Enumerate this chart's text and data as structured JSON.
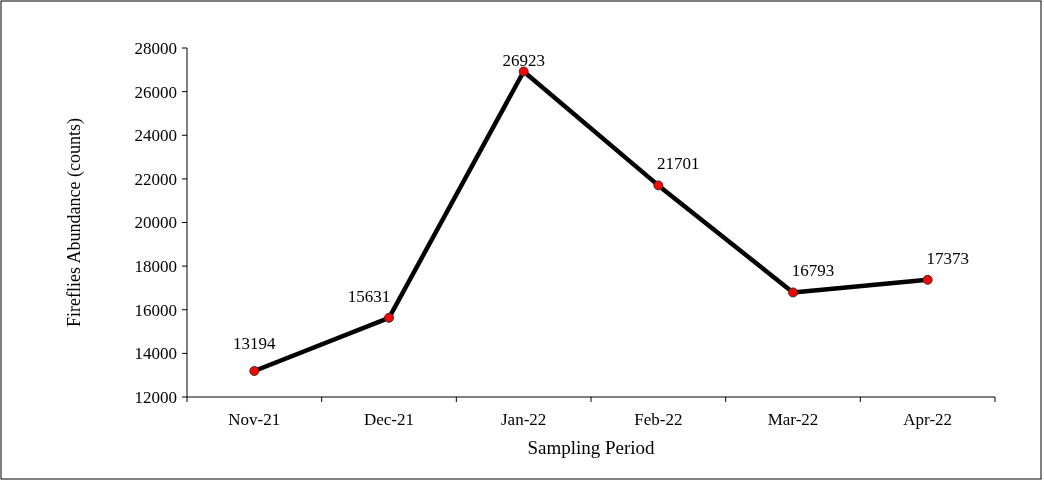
{
  "chart_data": {
    "type": "line",
    "xlabel": "Sampling Period",
    "ylabel": "Fireflies Abundance (counts)",
    "categories": [
      "Nov-21",
      "Dec-21",
      "Jan-22",
      "Feb-22",
      "Mar-22",
      "Apr-22"
    ],
    "series": [
      {
        "color": "#000000",
        "colors": [
          "#ff0000",
          "#ff0000",
          "#ff0000",
          "#ff0000",
          "#ff0000",
          "#ff0000"
        ],
        "values": [
          13194,
          15631,
          26923,
          21701,
          16793,
          17373
        ]
      }
    ],
    "ylim": [
      12000,
      28000
    ],
    "yticks": [
      12000,
      14000,
      16000,
      18000,
      20000,
      22000,
      24000,
      26000,
      28000
    ],
    "marker": "circle",
    "line_style": "solid",
    "data_labels": true,
    "grid": false
  }
}
